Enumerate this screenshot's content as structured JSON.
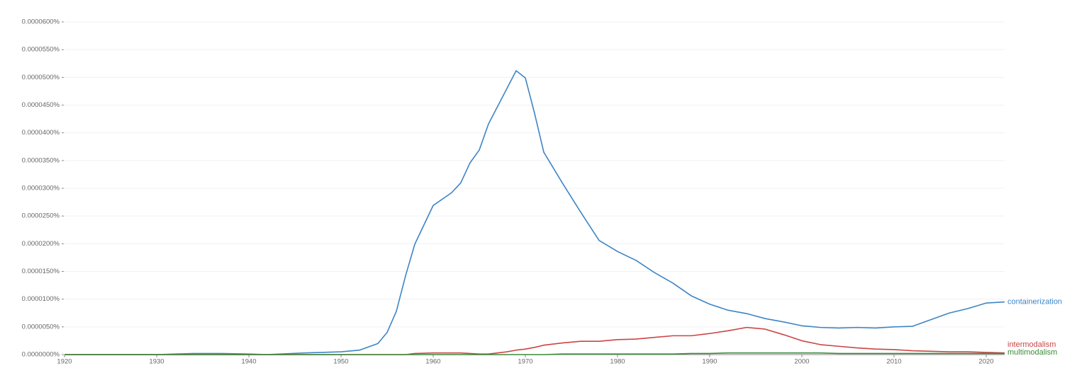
{
  "chart_data": {
    "type": "line",
    "x": [
      1920,
      1925,
      1930,
      1934,
      1937,
      1940,
      1942,
      1946,
      1950,
      1952,
      1954,
      1955,
      1956,
      1957,
      1958,
      1960,
      1962,
      1963,
      1964,
      1965,
      1966,
      1968,
      1969,
      1970,
      1971,
      1972,
      1974,
      1976,
      1978,
      1980,
      1982,
      1984,
      1986,
      1988,
      1990,
      1992,
      1994,
      1996,
      1998,
      2000,
      2002,
      2004,
      2006,
      2008,
      2010,
      2012,
      2014,
      2016,
      2018,
      2020,
      2022
    ],
    "series": [
      {
        "name": "containerization",
        "color": "#3d85c6",
        "values": [
          0,
          0,
          0,
          2e-07,
          2e-07,
          1e-07,
          0,
          3e-07,
          5e-07,
          8e-07,
          2e-06,
          4e-06,
          7.8e-06,
          1.42e-05,
          1.99e-05,
          2.69e-05,
          2.92e-05,
          3.1e-05,
          3.46e-05,
          3.69e-05,
          4.16e-05,
          4.8e-05,
          5.12e-05,
          4.99e-05,
          4.35e-05,
          3.65e-05,
          3.1e-05,
          2.57e-05,
          2.06e-05,
          1.86e-05,
          1.7e-05,
          1.48e-05,
          1.29e-05,
          1.06e-05,
          9.1e-06,
          8e-06,
          7.4e-06,
          6.5e-06,
          5.9e-06,
          5.2e-06,
          4.9e-06,
          4.8e-06,
          4.9e-06,
          4.8e-06,
          5e-06,
          5.1e-06,
          6.3e-06,
          7.5e-06,
          8.3e-06,
          9.3e-06,
          9.5e-06
        ]
      },
      {
        "name": "intermodalism",
        "color": "#cc4444",
        "values": [
          0,
          0,
          0,
          0,
          0,
          0,
          0,
          0,
          0,
          0,
          0,
          0,
          0,
          0,
          2e-07,
          3e-07,
          3e-07,
          3e-07,
          2e-07,
          1e-07,
          1e-07,
          5e-07,
          8e-07,
          1e-06,
          1.3e-06,
          1.7e-06,
          2.1e-06,
          2.4e-06,
          2.4e-06,
          2.7e-06,
          2.8e-06,
          3.1e-06,
          3.4e-06,
          3.4e-06,
          3.8e-06,
          4.3e-06,
          4.9e-06,
          4.6e-06,
          3.6e-06,
          2.5e-06,
          1.8e-06,
          1.5e-06,
          1.2e-06,
          1e-06,
          9e-07,
          7e-07,
          6e-07,
          5e-07,
          5e-07,
          4e-07,
          3e-07
        ]
      },
      {
        "name": "multimodalism",
        "color": "#3a8a3a",
        "values": [
          0,
          0,
          0,
          0,
          0,
          0,
          0,
          0,
          0,
          0,
          0,
          0,
          0,
          0,
          0,
          0,
          0,
          0,
          0,
          0,
          0,
          0,
          0,
          0,
          0,
          0,
          1e-07,
          1e-07,
          1e-07,
          1e-07,
          1e-07,
          1e-07,
          1e-07,
          2e-07,
          2e-07,
          3e-07,
          3e-07,
          3e-07,
          3e-07,
          3e-07,
          3e-07,
          2e-07,
          2e-07,
          2e-07,
          2e-07,
          2e-07,
          2e-07,
          2e-07,
          2e-07,
          2e-07,
          2e-07
        ]
      }
    ],
    "xlim": [
      1920,
      2022
    ],
    "xticks": [
      1920,
      1930,
      1940,
      1950,
      1960,
      1970,
      1980,
      1990,
      2000,
      2010,
      2020
    ],
    "ylim": [
      0,
      6e-05
    ],
    "yticks": [
      {
        "value": 0,
        "label": "0.0000000%"
      },
      {
        "value": 5e-06,
        "label": "0.0000050%"
      },
      {
        "value": 1e-05,
        "label": "0.0000100%"
      },
      {
        "value": 1.5e-05,
        "label": "0.0000150%"
      },
      {
        "value": 2e-05,
        "label": "0.0000200%"
      },
      {
        "value": 2.5e-05,
        "label": "0.0000250%"
      },
      {
        "value": 3e-05,
        "label": "0.0000300%"
      },
      {
        "value": 3.5e-05,
        "label": "0.0000350%"
      },
      {
        "value": 4e-05,
        "label": "0.0000400%"
      },
      {
        "value": 4.5e-05,
        "label": "0.0000450%"
      },
      {
        "value": 5e-05,
        "label": "0.0000500%"
      },
      {
        "value": 5.5e-05,
        "label": "0.0000550%"
      },
      {
        "value": 6e-05,
        "label": "0.0000600%"
      }
    ],
    "grid": true
  }
}
